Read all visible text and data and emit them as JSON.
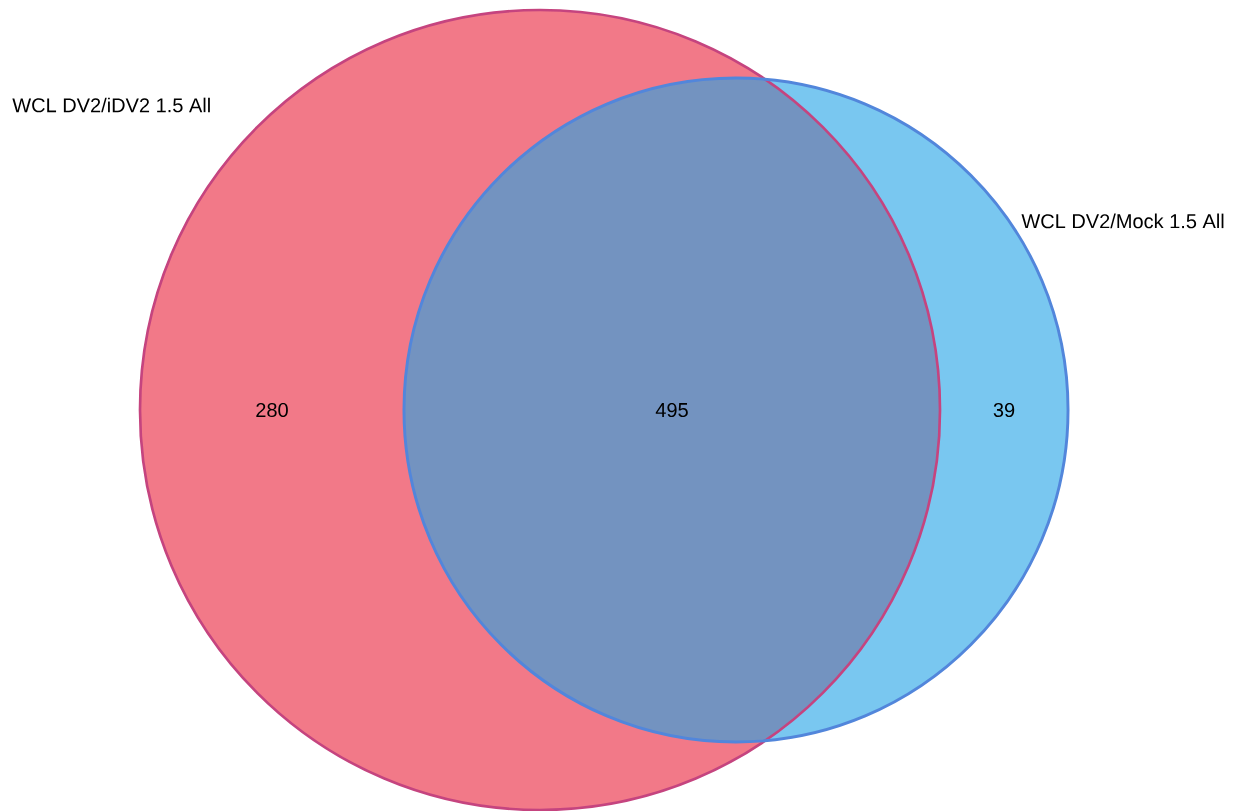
{
  "chart_data": {
    "type": "other",
    "categories": [
      null,
      null,
      null
    ],
    "values": [
      280,
      495,
      39
    ],
    "colors": [
      "#f27988",
      "#7393c0",
      "#79c7f0"
    ],
    "data_labels": true,
    "annotations": [
      "WCL DV2/iDV2 1.5 All",
      "WCL DV2/Mock 1.5 All"
    ]
  }
}
